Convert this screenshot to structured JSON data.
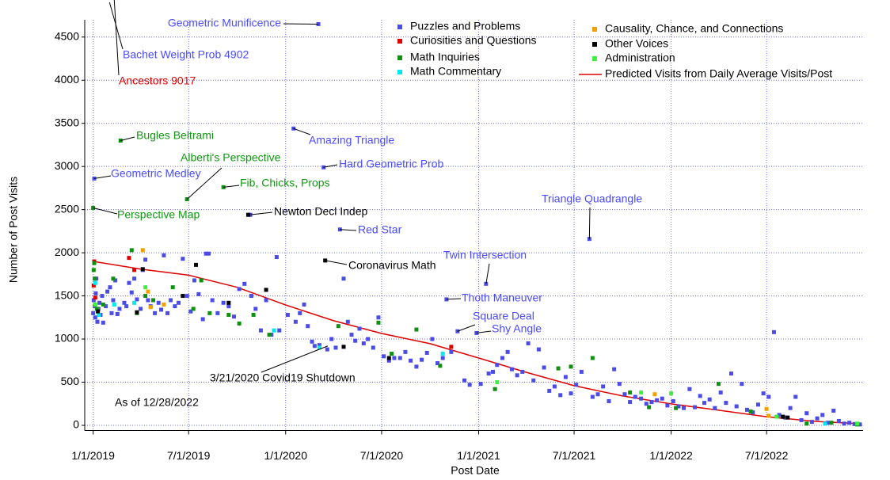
{
  "chart_data": {
    "type": "scatter",
    "xlabel": "Post Date",
    "ylabel": "Number of Post Visits",
    "note": "As of 12/28/2022",
    "xlim": [
      "2018-12-16",
      "2022-12-31"
    ],
    "ylim": [
      -60,
      4700
    ],
    "xticks": [
      {
        "value": "2019-01-01",
        "label": "1/1/2019"
      },
      {
        "value": "2019-07-01",
        "label": "7/1/2019"
      },
      {
        "value": "2020-01-01",
        "label": "1/1/2020"
      },
      {
        "value": "2020-07-01",
        "label": "7/1/2020"
      },
      {
        "value": "2021-01-01",
        "label": "1/1/2021"
      },
      {
        "value": "2021-07-01",
        "label": "7/1/2021"
      },
      {
        "value": "2022-01-01",
        "label": "1/1/2022"
      },
      {
        "value": "2022-07-01",
        "label": "7/1/2022"
      }
    ],
    "yticks": [
      0,
      500,
      1000,
      1500,
      2000,
      2500,
      3000,
      3500,
      4000,
      4500
    ],
    "grid": true,
    "series": [
      {
        "name": "Puzzles and Problems",
        "color": "#4b4be8",
        "x": [
          "2019-01-01",
          "2019-01-02",
          "2019-01-03",
          "2019-01-04",
          "2019-01-05",
          "2019-01-06",
          "2019-01-07",
          "2019-01-09",
          "2019-01-11",
          "2019-01-13",
          "2019-01-15",
          "2019-01-18",
          "2019-01-20",
          "2019-01-25",
          "2019-01-28",
          "2019-02-02",
          "2019-02-05",
          "2019-02-08",
          "2019-02-12",
          "2019-02-16",
          "2019-02-20",
          "2019-03-01",
          "2019-03-05",
          "2019-03-10",
          "2019-03-15",
          "2019-03-20",
          "2019-03-25",
          "2019-04-01",
          "2019-04-05",
          "2019-04-10",
          "2019-04-15",
          "2019-04-20",
          "2019-04-28",
          "2019-05-05",
          "2019-05-10",
          "2019-05-15",
          "2019-05-22",
          "2019-05-28",
          "2019-06-05",
          "2019-06-12",
          "2019-06-20",
          "2019-06-28",
          "2019-07-05",
          "2019-07-12",
          "2019-07-20",
          "2019-07-28",
          "2019-08-03",
          "2019-08-08",
          "2019-08-15",
          "2019-08-25",
          "2019-09-05",
          "2019-09-15",
          "2019-09-25",
          "2019-10-05",
          "2019-10-15",
          "2019-10-26",
          "2019-10-28",
          "2019-11-05",
          "2019-11-15",
          "2019-11-25",
          "2019-12-05",
          "2019-12-15",
          "2019-12-20",
          "2020-01-05",
          "2020-01-16",
          "2020-01-20",
          "2020-01-28",
          "2020-02-05",
          "2020-02-12",
          "2020-02-20",
          "2020-02-25",
          "2020-03-03",
          "2020-03-05",
          "2020-03-13",
          "2020-03-20",
          "2020-03-28",
          "2020-04-05",
          "2020-04-13",
          "2020-04-20",
          "2020-04-28",
          "2020-05-05",
          "2020-05-12",
          "2020-05-20",
          "2020-05-28",
          "2020-06-05",
          "2020-06-15",
          "2020-06-25",
          "2020-07-05",
          "2020-07-15",
          "2020-07-25",
          "2020-08-05",
          "2020-08-15",
          "2020-08-25",
          "2020-09-05",
          "2020-09-15",
          "2020-09-25",
          "2020-10-05",
          "2020-10-15",
          "2020-10-25",
          "2020-11-01",
          "2020-11-10",
          "2020-11-22",
          "2020-12-05",
          "2020-12-15",
          "2020-12-28",
          "2021-01-05",
          "2021-01-15",
          "2021-01-20",
          "2021-01-28",
          "2021-02-05",
          "2021-02-15",
          "2021-02-25",
          "2021-03-05",
          "2021-03-15",
          "2021-03-25",
          "2021-04-05",
          "2021-04-15",
          "2021-04-25",
          "2021-05-05",
          "2021-05-15",
          "2021-05-25",
          "2021-06-05",
          "2021-06-15",
          "2021-06-25",
          "2021-07-05",
          "2021-07-15",
          "2021-07-30",
          "2021-08-05",
          "2021-08-15",
          "2021-08-25",
          "2021-09-05",
          "2021-09-15",
          "2021-09-25",
          "2021-10-05",
          "2021-10-15",
          "2021-10-25",
          "2021-11-05",
          "2021-11-15",
          "2021-11-25",
          "2021-12-05",
          "2021-12-15",
          "2021-12-25",
          "2022-01-05",
          "2022-01-15",
          "2022-01-25",
          "2022-02-05",
          "2022-02-15",
          "2022-02-25",
          "2022-03-05",
          "2022-03-15",
          "2022-03-25",
          "2022-04-05",
          "2022-04-15",
          "2022-04-25",
          "2022-05-05",
          "2022-05-15",
          "2022-05-25",
          "2022-06-05",
          "2022-06-15",
          "2022-06-25",
          "2022-07-05",
          "2022-07-15",
          "2022-07-25",
          "2022-08-05",
          "2022-08-15",
          "2022-08-25",
          "2022-09-05",
          "2022-09-15",
          "2022-09-25",
          "2022-10-05",
          "2022-10-15",
          "2022-10-25",
          "2022-11-05",
          "2022-11-15",
          "2022-11-25",
          "2022-12-05",
          "2022-12-15",
          "2022-12-25"
        ],
        "values": [
          1300,
          1450,
          2860,
          1380,
          1250,
          1530,
          1700,
          1200,
          1350,
          1420,
          1280,
          1500,
          1190,
          1380,
          1550,
          1600,
          1300,
          1450,
          1680,
          1290,
          1350,
          1420,
          1380,
          1650,
          1540,
          1700,
          1460,
          1350,
          1800,
          1920,
          1450,
          1380,
          1300,
          1420,
          1340,
          1970,
          1300,
          1450,
          1380,
          1420,
          1930,
          1500,
          1320,
          1680,
          1520,
          1230,
          1990,
          1990,
          1450,
          1300,
          1420,
          1380,
          1260,
          1580,
          1640,
          2440,
          1500,
          1350,
          1100,
          1450,
          1050,
          1950,
          1100,
          1280,
          3440,
          1200,
          1300,
          1400,
          1150,
          970,
          920,
          4650,
          930,
          2990,
          880,
          1000,
          900,
          2270,
          1700,
          1200,
          1050,
          980,
          1120,
          950,
          1000,
          900,
          1250,
          800,
          750,
          780,
          780,
          850,
          750,
          680,
          760,
          840,
          1000,
          720,
          780,
          1460,
          850,
          1090,
          520,
          470,
          1070,
          480,
          1640,
          600,
          620,
          700,
          780,
          850,
          650,
          580,
          620,
          950,
          520,
          880,
          670,
          400,
          450,
          350,
          560,
          370,
          470,
          620,
          2160,
          330,
          360,
          450,
          280,
          650,
          480,
          360,
          270,
          330,
          310,
          250,
          270,
          290,
          310,
          230,
          280,
          220,
          200,
          420,
          210,
          340,
          260,
          300,
          200,
          380,
          260,
          600,
          220,
          480,
          180,
          150,
          240,
          370,
          330,
          1080,
          120,
          90,
          200,
          330,
          60,
          140,
          40,
          80,
          120,
          30,
          170,
          50,
          20,
          30,
          15,
          10
        ]
      },
      {
        "name": "Curiosities and Questions",
        "color": "#e00000",
        "x": [
          "2019-01-02",
          "2019-01-03",
          "2019-01-05",
          "2019-03-10",
          "2019-03-20",
          "2020-11-10"
        ],
        "values": [
          1620,
          1900,
          1480,
          1940,
          1800,
          910
        ]
      },
      {
        "name": "Math Inquiries",
        "color": "#109010",
        "x": [
          "2019-01-01",
          "2019-01-02",
          "2019-01-03",
          "2019-01-04",
          "2019-01-08",
          "2019-01-20",
          "2019-02-08",
          "2019-02-22",
          "2019-03-15",
          "2019-03-25",
          "2019-04-10",
          "2019-04-25",
          "2019-06-01",
          "2019-06-28",
          "2019-07-10",
          "2019-07-25",
          "2019-08-10",
          "2019-09-05",
          "2019-09-15",
          "2019-10-05",
          "2019-11-01",
          "2019-12-01",
          "2020-04-10",
          "2020-06-25",
          "2020-07-20",
          "2020-09-05",
          "2020-10-20",
          "2021-02-01",
          "2021-06-01",
          "2021-06-25",
          "2021-08-05",
          "2021-10-15",
          "2021-11-20",
          "2022-01-10",
          "2022-04-01",
          "2022-06-01",
          "2022-09-15",
          "2022-11-01",
          "2022-12-20"
        ],
        "values": [
          2520,
          1800,
          1880,
          1700,
          1350,
          1400,
          1700,
          3300,
          2030,
          1300,
          1500,
          1450,
          1600,
          2620,
          1350,
          1680,
          1300,
          2760,
          1280,
          1180,
          1280,
          1050,
          1150,
          1190,
          830,
          1110,
          690,
          420,
          660,
          680,
          780,
          380,
          210,
          200,
          480,
          160,
          20,
          30,
          10
        ]
      },
      {
        "name": "Math Commentary",
        "color": "#00e8f0",
        "x": [
          "2019-01-05",
          "2019-01-12",
          "2019-02-10",
          "2019-03-20",
          "2019-12-10",
          "2020-03-05",
          "2020-10-25",
          "2022-10-20"
        ],
        "values": [
          1650,
          1280,
          1400,
          1420,
          1100,
          900,
          830,
          20
        ]
      },
      {
        "name": "Causality, Chance, and Connections",
        "color": "#f0a000",
        "x": [
          "2019-04-05",
          "2019-04-15",
          "2019-04-20",
          "2019-05-15",
          "2021-12-01",
          "2022-07-01",
          "2022-07-05"
        ],
        "values": [
          2030,
          1550,
          1370,
          1400,
          360,
          190,
          110
        ]
      },
      {
        "name": "Other Voices",
        "color": "#000000",
        "x": [
          "2019-01-10",
          "2019-03-25",
          "2019-04-05",
          "2019-06-20",
          "2019-07-15",
          "2019-09-15",
          "2019-10-22",
          "2019-11-25",
          "2020-03-16",
          "2020-04-20",
          "2020-07-15",
          "2022-08-01",
          "2022-08-10"
        ],
        "values": [
          1320,
          1310,
          1810,
          1500,
          1860,
          1420,
          2440,
          1570,
          1910,
          910,
          780,
          100,
          90
        ]
      },
      {
        "name": "Administration",
        "color": "#40f040",
        "x": [
          "2019-01-05",
          "2019-04-10",
          "2021-02-05",
          "2021-11-05",
          "2022-01-01",
          "2022-07-20",
          "2022-12-20"
        ],
        "values": [
          1400,
          1600,
          500,
          380,
          370,
          100,
          20
        ]
      }
    ],
    "line": {
      "name": "Predicted Visits from Daily Average Visits/Post",
      "color": "#e00000",
      "x": [
        "2019-01-01",
        "2019-04-01",
        "2019-07-01",
        "2019-10-01",
        "2020-01-01",
        "2020-04-01",
        "2020-07-01",
        "2020-10-01",
        "2021-01-01",
        "2021-04-01",
        "2021-07-01",
        "2021-10-01",
        "2022-01-01",
        "2022-04-01",
        "2022-07-01",
        "2022-10-01",
        "2022-12-28"
      ],
      "values": [
        1900,
        1810,
        1740,
        1600,
        1395,
        1212,
        1065,
        946,
        780,
        615,
        460,
        340,
        248,
        175,
        100,
        46,
        18
      ]
    },
    "annotations": [
      {
        "text": "Geometric Munificence",
        "x": "2020-03-03",
        "y": 4650,
        "color": "#4b4bff"
      },
      {
        "text": "Bachet Weight Prob 4902",
        "x": "2019-02-01",
        "y": 4902,
        "color": "#4b4bff"
      },
      {
        "text": "Ancestors 9017",
        "x": "2019-01-01",
        "y": 9017,
        "color": "#e00000"
      },
      {
        "text": "Bugles Beltrami",
        "x": "2019-02-22",
        "y": 3300,
        "color": "#109810"
      },
      {
        "text": "Geometric Medley",
        "x": "2019-01-03",
        "y": 2860,
        "color": "#4b4bff"
      },
      {
        "text": "Alberti's Perspective",
        "x": "2019-06-28",
        "y": 2620,
        "color": "#109810"
      },
      {
        "text": "Fib, Chicks, Props",
        "x": "2019-09-05",
        "y": 2760,
        "color": "#109810"
      },
      {
        "text": "Perspective Map",
        "x": "2019-01-01",
        "y": 2520,
        "color": "#109810"
      },
      {
        "text": "Newton Decl Indep",
        "x": "2019-10-26",
        "y": 2440,
        "color": "#000000"
      },
      {
        "text": "Amazing Triangle",
        "x": "2020-01-16",
        "y": 3440,
        "color": "#4b4bff"
      },
      {
        "text": "Hard Geometric Prob",
        "x": "2020-03-13",
        "y": 2990,
        "color": "#4b4bff"
      },
      {
        "text": "Red Star",
        "x": "2020-04-13",
        "y": 2270,
        "color": "#4b4bff"
      },
      {
        "text": "Coronavirus Math",
        "x": "2020-03-16",
        "y": 1910,
        "color": "#000000"
      },
      {
        "text": "Triangle Quadrangle",
        "x": "2021-07-30",
        "y": 2160,
        "color": "#4b4bff"
      },
      {
        "text": "Twin Intersection",
        "x": "2021-01-15",
        "y": 1640,
        "color": "#4b4bff"
      },
      {
        "text": "Thoth Maneuver",
        "x": "2020-11-01",
        "y": 1460,
        "color": "#4b4bff"
      },
      {
        "text": "Square Deal",
        "x": "2020-11-22",
        "y": 1090,
        "color": "#4b4bff"
      },
      {
        "text": "Shy Angle",
        "x": "2020-12-28",
        "y": 1070,
        "color": "#4b4bff"
      },
      {
        "text": "3/21/2020 Covid19 Shutdown",
        "x": "2020-03-21",
        "y": 920,
        "color": "#000000"
      }
    ]
  }
}
